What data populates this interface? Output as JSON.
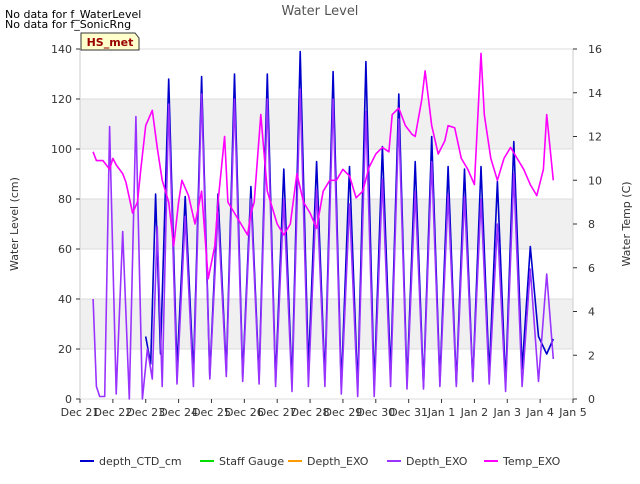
{
  "notes": [
    "No data for f_WaterLevel",
    "No data for f_SonicRng"
  ],
  "badge": "HS_met",
  "chart_data": {
    "type": "line",
    "title": "Water Level",
    "ylabel": "Water Level (cm)",
    "y2label": "Water Temp (C)",
    "ylim": [
      0,
      140
    ],
    "y2lim": [
      0,
      16
    ],
    "yticks": [
      "0",
      "20",
      "40",
      "60",
      "80",
      "100",
      "120",
      "140"
    ],
    "y2ticks": [
      "0",
      "2",
      "4",
      "6",
      "8",
      "10",
      "12",
      "14",
      "16"
    ],
    "xlim": [
      0,
      15
    ],
    "xticks": [
      "Dec 21",
      "Dec 22",
      "Dec 23",
      "Dec 24",
      "Dec 25",
      "Dec 26",
      "Dec 27",
      "Dec 28",
      "Dec 29",
      "Dec 30",
      "Dec 31",
      "Jan 1",
      "Jan 2",
      "Jan 3",
      "Jan 4",
      "Jan 5"
    ],
    "bands": [
      [
        20,
        40
      ],
      [
        60,
        80
      ],
      [
        100,
        120
      ]
    ],
    "legend": [
      {
        "name": "depth_CTD_cm",
        "color": "#0000cc"
      },
      {
        "name": "Staff Gauge",
        "color": "#00dd00"
      },
      {
        "name": "Depth_EXO",
        "color": "#ff9900"
      },
      {
        "name": "Depth_EXO",
        "color": "#9933ff"
      },
      {
        "name": "Temp_EXO",
        "color": "#ff00ff"
      }
    ],
    "series": [
      {
        "name": "depth_CTD_cm",
        "axis": "left",
        "color": "#0000cc",
        "x": [
          2.0,
          2.15,
          2.3,
          2.45,
          2.7,
          2.95,
          3.2,
          3.45,
          3.7,
          3.95,
          4.2,
          4.45,
          4.7,
          4.95,
          5.2,
          5.45,
          5.7,
          5.95,
          6.2,
          6.45,
          6.7,
          6.95,
          7.2,
          7.45,
          7.7,
          7.95,
          8.2,
          8.45,
          8.7,
          8.95,
          9.2,
          9.45,
          9.7,
          9.95,
          10.2,
          10.45,
          10.7,
          10.95,
          11.2,
          11.45,
          11.7,
          11.95,
          12.2,
          12.45,
          12.7,
          12.95,
          13.2,
          13.45,
          13.7,
          13.95,
          14.2,
          14.4
        ],
        "y": [
          25,
          14,
          82,
          18,
          128,
          12,
          81,
          10,
          129,
          9,
          82,
          11,
          130,
          9,
          85,
          8,
          130,
          7,
          92,
          6,
          139,
          12,
          95,
          8,
          131,
          5,
          93,
          4,
          135,
          5,
          101,
          10,
          122,
          6,
          95,
          5,
          105,
          7,
          93,
          6,
          92,
          7,
          93,
          10,
          87,
          6,
          103,
          12,
          61,
          25,
          18,
          24
        ]
      },
      {
        "name": "Depth_EXO",
        "axis": "left",
        "color": "#9933ff",
        "x": [
          0.4,
          0.5,
          0.6,
          0.75,
          0.9,
          1.1,
          1.3,
          1.5,
          1.7,
          1.9,
          2.05,
          2.2,
          2.35,
          2.5,
          2.7,
          2.95,
          3.2,
          3.45,
          3.7,
          3.95,
          4.2,
          4.45,
          4.7,
          4.95,
          5.2,
          5.45,
          5.7,
          5.95,
          6.2,
          6.45,
          6.7,
          6.95,
          7.2,
          7.45,
          7.7,
          7.95,
          8.2,
          8.45,
          8.7,
          8.95,
          9.2,
          9.45,
          9.7,
          9.95,
          10.2,
          10.45,
          10.7,
          10.95,
          11.2,
          11.45,
          11.7,
          11.95,
          12.2,
          12.45,
          12.7,
          12.95,
          13.2,
          13.45,
          13.7,
          13.95,
          14.2,
          14.4
        ],
        "y": [
          40,
          5,
          1,
          1,
          109,
          2,
          67,
          0,
          113,
          0,
          20,
          8,
          69,
          5,
          118,
          6,
          73,
          5,
          122,
          8,
          75,
          9,
          120,
          7,
          80,
          6,
          120,
          5,
          80,
          3,
          124,
          5,
          84,
          5,
          120,
          2,
          78,
          1,
          115,
          1,
          88,
          5,
          112,
          4,
          83,
          4,
          95,
          5,
          82,
          5,
          81,
          7,
          80,
          6,
          70,
          3,
          90,
          5,
          52,
          7,
          50,
          16
        ]
      },
      {
        "name": "Temp_EXO",
        "axis": "right",
        "color": "#ff00ff",
        "x": [
          0.4,
          0.5,
          0.7,
          0.9,
          1.0,
          1.1,
          1.3,
          1.4,
          1.6,
          1.75,
          1.85,
          2.0,
          2.2,
          2.35,
          2.5,
          2.7,
          2.85,
          3.0,
          3.1,
          3.3,
          3.5,
          3.7,
          3.9,
          4.1,
          4.2,
          4.4,
          4.5,
          4.7,
          4.9,
          5.1,
          5.2,
          5.3,
          5.5,
          5.7,
          5.9,
          6.0,
          6.2,
          6.4,
          6.6,
          6.8,
          7.0,
          7.2,
          7.4,
          7.6,
          7.8,
          8.0,
          8.2,
          8.4,
          8.6,
          8.8,
          9.0,
          9.2,
          9.4,
          9.5,
          9.7,
          9.9,
          10.1,
          10.2,
          10.4,
          10.5,
          10.7,
          10.9,
          11.1,
          11.2,
          11.4,
          11.6,
          11.8,
          12.0,
          12.2,
          12.3,
          12.5,
          12.7,
          12.9,
          13.1,
          13.3,
          13.5,
          13.7,
          13.9,
          14.1,
          14.2,
          14.4
        ],
        "y": [
          11.3,
          10.9,
          10.9,
          10.5,
          11.0,
          10.7,
          10.3,
          9.9,
          8.5,
          9.0,
          10.5,
          12.5,
          13.2,
          11.5,
          10.0,
          9.0,
          7.0,
          9.0,
          10.0,
          9.3,
          8.0,
          9.5,
          5.5,
          7.0,
          9.0,
          12.0,
          9.0,
          8.5,
          8.0,
          7.5,
          8.5,
          9.0,
          13.0,
          9.5,
          8.5,
          8.0,
          7.5,
          8.0,
          10.3,
          9.0,
          8.5,
          7.8,
          9.5,
          10.0,
          10.0,
          10.5,
          10.2,
          9.2,
          9.5,
          10.6,
          11.2,
          11.5,
          11.3,
          13.0,
          13.3,
          12.5,
          12.1,
          12.0,
          13.7,
          15.0,
          12.5,
          11.2,
          11.8,
          12.5,
          12.4,
          11.0,
          10.5,
          9.8,
          15.8,
          13.0,
          11.0,
          10.0,
          11.0,
          11.5,
          11.0,
          10.5,
          9.8,
          9.3,
          10.5,
          13.0,
          10.0
        ]
      }
    ]
  }
}
